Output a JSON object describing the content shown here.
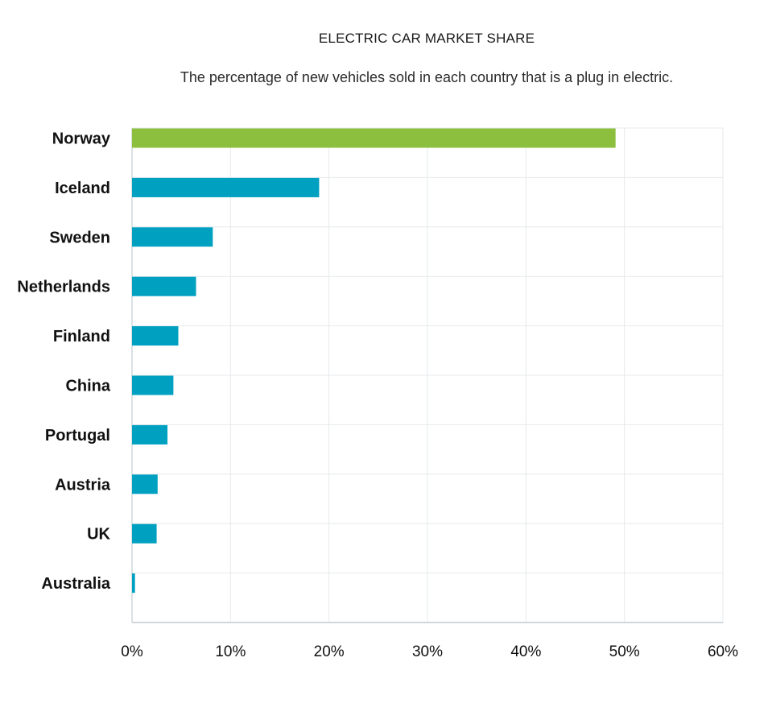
{
  "title": "ELECTRIC CAR MARKET SHARE",
  "subtitle": "The percentage of new vehicles sold in each country that is a plug in electric.",
  "colors": {
    "highlight": "#8dbf3f",
    "bar": "#00a0c0",
    "grid": "#e6e9ec",
    "axis": "#cfd6dc"
  },
  "chart_data": {
    "type": "bar",
    "orientation": "horizontal",
    "title": "ELECTRIC CAR MARKET SHARE",
    "subtitle": "The percentage of new vehicles sold in each country that is a plug in electric.",
    "categories": [
      "Norway",
      "Iceland",
      "Sweden",
      "Netherlands",
      "Finland",
      "China",
      "Portugal",
      "Austria",
      "UK",
      "Australia"
    ],
    "values": [
      49.1,
      19.0,
      8.2,
      6.5,
      4.7,
      4.2,
      3.6,
      2.6,
      2.5,
      0.3
    ],
    "highlighted_category": "Norway",
    "xlim": [
      0,
      60
    ],
    "x_ticks": [
      0,
      10,
      20,
      30,
      40,
      50,
      60
    ],
    "x_tick_labels": [
      "0%",
      "10%",
      "20%",
      "30%",
      "40%",
      "50%",
      "60%"
    ],
    "xlabel": "",
    "ylabel": "",
    "grid": true
  }
}
